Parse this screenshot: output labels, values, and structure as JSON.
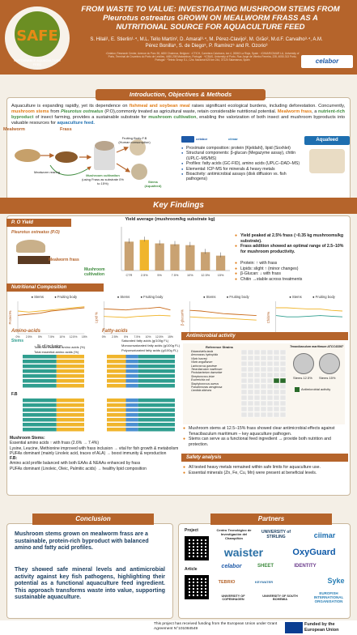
{
  "header": {
    "title": "FROM WASTE TO VALUE: INVESTIGATING MUSHROOM STEMS FROM Pleurotus ostreatus GROWN ON MEALWORM FRASS AS A NUTRITIONAL SOURCE FOR AQUACULTURE FEED",
    "authors": "S. Hilali¹, E. Stierlin¹·⁴, M.L. Tello Martín², D. Amaral³·⁴, M. Pérez-Clavijo², M. Grão², M.d.F. Carvalho³·⁴, A.M. Pérez Bonilla⁵, S. de Diego⁵, P. Ramírez⁵ and R. Ozorio³",
    "affiliations": "¹Celabor, Research Center, Avenue du Parc 38, 4650 Chaineux, Belgium · ²CTICH, Carretera Calahorra, km 4, 26560 La Rioja, Spain · ³CIIMAR/CIMAR LA, University of Porto, Terminal de Cruzeiros do Porto de Leixões, 4450-208 Matosinhos, Portugal · ⁴ICBAS, University of Porto, Rua Jorge de Viterbo Ferreira, 228, 4050-313 Porto, Portugal · ⁵Tebrio Group S.L, C/ra. Nacional 620 km 244, 37120 Salamanca, Spain",
    "logo_text": "SAFE",
    "logo_sub": "SUSTAINABLE AQUACULTURE FEED",
    "celabor": "celabor"
  },
  "intro": {
    "heading": "Introduction, Objectives & Methods",
    "text_a": "Aquaculture is expanding rapidly, yet its dependence on ",
    "text_b": "fishmeal and soybean meal",
    "text_c": " raises significant ecological burdens, including deforestation. Concurrently, ",
    "text_d": "mushroom stems",
    "text_e": " from ",
    "text_f": "Pleurotus ostreatus",
    "text_g": " (P.O),commonly treated as agricultural waste, retain considerable nutritional potential. ",
    "text_h": "Mealworm frass",
    "text_i": ", a ",
    "text_j": "nutrient-rich byproduct",
    "text_k": " of insect farming, provides a sustainable substrate for ",
    "text_l": "mushroom cultivation",
    "text_m": ", enabling the valorization of both insect and mushroom byproducts into valuable resources for ",
    "text_n": "aquaculture feed.",
    "diagram": {
      "mealworm": "Mealworm",
      "frass": "Frass",
      "rearing": "Mealworm rearing",
      "cultivation": "Mushroom cultivation",
      "cultivation_sub": "(using Frass as substrate 0% to 15%)",
      "fruiting": "Fruiting Body-F.B (Human consumption)",
      "stems": "Stems (Aquafeed)",
      "aquafeed": "Aquafeed"
    },
    "methods": [
      "Proximate composition: protein (Kjeldahl), lipid (Soxhlet)",
      "Structural components: β-glucan (Megazyme assay), chitin (UPLC–MS/MS)",
      "Profiles: fatty acids (GC-FID), amino acids (UPLC–DAD–MS)",
      "Elemental: ICP-MS for minerals & heavy metals",
      "Bioactivity: antimicrobial assays (disk diffusion vs. fish pathogens)"
    ],
    "method_logos": [
      "celabor",
      "ciimar"
    ]
  },
  "key": {
    "heading": "Key Findings",
    "po_yield_heading": "P. O Yield",
    "po_label": "Pleurotus ostreatus (P.O)",
    "frass_label": "Mealworm frass",
    "cultivation_label": "Mushroom cultivation",
    "yield_bullets": [
      "Yield peaked at 2.5% frass (~0.35 kg mushrooms/kg substrate).",
      "Frass addition showed an optimal range of 2.5–10% for mushroom productivity."
    ],
    "protein_bullets": [
      "Protein: ↑ with frass",
      "Lipids: slight ↑ (minor changes)",
      "β-Glucan: ↓ with frass",
      "Chitin →stable across treatments"
    ],
    "nutritional_heading": "Nutritional Composition",
    "x_axis_label": "% of inclusion",
    "amino_heading": "Amino-acids",
    "fatty_heading": "Fatty-acids",
    "stems_label": "Stems",
    "fb_label": "F.B",
    "amino_legend": [
      "Total non essential amino acids (%)",
      "Total essential amino acids (%)"
    ],
    "fatty_legend": [
      "Saturated fatty acids (g/100g FL)",
      "Monounsaturated fatty acids (g/100g FL)",
      "Polyunsaturated fatty acids (g/100g FL)"
    ],
    "fatty_legend_fb": [
      "Saturated fatty acids (g/100g FL)",
      "Monounsaturated fatty acids (g/100g FL)",
      "Polyunsaturated fatty acids (g/100g FL)"
    ],
    "amino_summary_title_1": "Mushroom Stems:",
    "amino_summary_1": [
      "Essential amino acids ↑ with frass (2.6% → 7.4%)",
      "Lysine, Leucine, Methionine improved with frass inclusion → vital for fish growth & metabolism",
      "PUFAs dominant (mainly Linoleic acid, traces of ALA) → boost immunity & reproduction"
    ],
    "amino_summary_title_2": "F.B:",
    "amino_summary_2": [
      "Amino acid profile balanced with both EAAs & NEAAs enhanced by frass",
      "PUFAs dominant (Linoleic, Oleic, Palmitic acids) → healthy lipid composition"
    ],
    "antimicrobial_heading": "Antimicrobial activity",
    "antimicrobial_legend": [
      "Reference Strains",
      "Antimicrobial activity"
    ],
    "antimicrobial_bullets": [
      "Mushroom stems at 12.5–15% frass showed clear antimicrobial effects against Tenacibaculum maritimum – key aquaculture pathogen.",
      "Stems can serve as a functional feed ingredient → provide both nutrition and protection."
    ],
    "strains": [
      "Edwardsiella tarda",
      "Aeromonas hydrophila",
      "Vibrio harveyi",
      "Vibrio anguillarum",
      "Lactococcus garvieae",
      "Tenacibaculum maritimum",
      "Photobacterium damselae",
      "Streptococcus iniae",
      "Escherichia coli",
      "Staphylococcus aureus",
      "Pseudomonas aeruginosa",
      "Candida albicans"
    ],
    "strain_panel_title": "Tenacibaculum maritimum ATCC43397",
    "strain_panel_labels": [
      "Stems 12.5%",
      "Stems 15%"
    ],
    "strain_panel_legend": "Antimicrobial activity",
    "safety_heading": "Safety analysis",
    "safety_bullets": [
      "All tested heavy metals remained within safe limits for aquaculture use.",
      "Essential minerals (Zn, Fe, Cu, Mn) were present at beneficial levels."
    ]
  },
  "conclusion": {
    "heading": "Conclusion",
    "p1": "Mushroom stems grown on mealworm frass are a sustainable, protein-rich byproduct with balanced amino and fatty acid profiles.",
    "p2": "They showed safe mineral levels and antimicrobial activity against key fish pathogens, highlighting their potential as a functional aquaculture feed ingredient. This approach transforms waste into value, supporting sustainable aquaculture."
  },
  "partners": {
    "heading": "Partners",
    "project_label": "Project",
    "article_label": "Article",
    "names": [
      "Centro Tecnológico de Investigación del Champiñón",
      "UNIVERSITY of STIRLING",
      "ciimar",
      "waister",
      "OxyGuard",
      "celabor",
      "SHEET",
      "IDENTITY",
      "TEBRIO",
      "KEYWATER",
      "Syke",
      "UNIVERSITY OF COPENHAGEN",
      "UNIVERSITY OF SOUTH BOHEMIA",
      "EUROFISH INTERNATIONAL ORGANISATION"
    ]
  },
  "footer": {
    "text": "This project has received funding from the European Union under Grant Agreement N°101084549",
    "eu": "Funded by the European Union"
  },
  "colors": {
    "brand": "#b5642b",
    "stems": "#2f9e8f",
    "fruiting": "#f0b52c",
    "protein": "#c96a1a"
  },
  "chart_data": [
    {
      "type": "bar",
      "title": "Yield average (mushroom/kg substrate kg)",
      "categories": [
        "CTR",
        "2.5%",
        "5%",
        "7.5%",
        "10%",
        "12.5%",
        "15%"
      ],
      "values": [
        0.33,
        0.35,
        0.31,
        0.3,
        0.29,
        0.21,
        0.17
      ],
      "ylim": [
        0,
        0.5
      ]
    },
    {
      "type": "line",
      "ylabel": "Protein%",
      "xlabel": "% of inclusion",
      "x": [
        "0%",
        "2.5%",
        "5%",
        "7.5%",
        "10%",
        "12.5%",
        "15%"
      ],
      "ylim": [
        0,
        30
      ],
      "series": [
        {
          "name": "Stems",
          "values": [
            17,
            18,
            19,
            21,
            22,
            23,
            24
          ]
        },
        {
          "name": "Fruiting body",
          "values": [
            21,
            20,
            21,
            22,
            23,
            24,
            25
          ]
        }
      ]
    },
    {
      "type": "line",
      "ylabel": "Lipid %",
      "xlabel": "% of inclusion",
      "x": [
        "0%",
        "2.5%",
        "5%",
        "7.5%",
        "10%",
        "12.5%",
        "15%"
      ],
      "ylim": [
        0,
        6
      ],
      "series": [
        {
          "name": "Stems",
          "values": [
            4.6,
            4.5,
            4.4,
            4.6,
            4.7,
            4.9,
            4.4
          ]
        },
        {
          "name": "Fruiting body",
          "values": [
            3.2,
            3.1,
            3.0,
            3.2,
            3.3,
            3.4,
            3.3
          ]
        }
      ]
    },
    {
      "type": "line",
      "ylabel": "β-glucan%",
      "xlabel": "% of inclusion",
      "x": [
        "0%",
        "2.5%",
        "5%",
        "7.5%",
        "10%",
        "12.5%",
        "15%"
      ],
      "ylim": [
        0,
        50
      ],
      "series": [
        {
          "name": "Stems",
          "values": [
            36,
            35,
            33,
            31,
            30,
            29,
            28
          ]
        },
        {
          "name": "Fruiting body",
          "values": [
            26,
            25,
            24,
            24,
            23,
            22,
            21
          ]
        }
      ]
    },
    {
      "type": "line",
      "ylabel": "Chitin%",
      "xlabel": "% of inclusion",
      "x": [
        "0%",
        "2.5%",
        "5%",
        "7.5%",
        "10%",
        "12.5%",
        "15%"
      ],
      "ylim": [
        0,
        5
      ],
      "series": [
        {
          "name": "Stems",
          "values": [
            2.8,
            2.6,
            2.6,
            2.7,
            2.8,
            2.7,
            2.6
          ]
        },
        {
          "name": "Fruiting body",
          "values": [
            4.0,
            4.0,
            3.9,
            3.8,
            3.8,
            3.6,
            3.5
          ]
        }
      ]
    }
  ]
}
